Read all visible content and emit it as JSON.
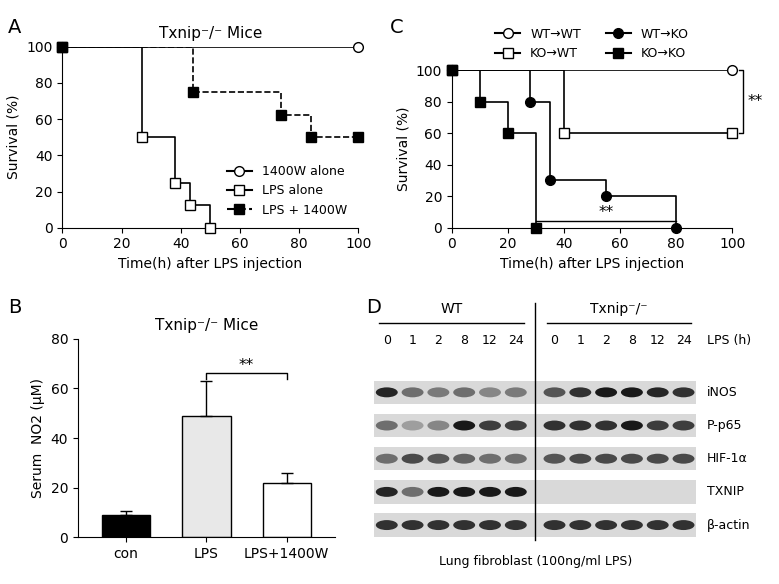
{
  "chart_data": [
    {
      "panel": "A",
      "type": "survival",
      "title": "Txnip⁻/⁻ Mice",
      "x_label": "Time(h) after LPS injection",
      "y_label": "Survival (%)",
      "xlim": [
        0,
        100
      ],
      "xticks": [
        0,
        20,
        40,
        60,
        80,
        100
      ],
      "ylim": [
        0,
        100
      ],
      "yticks": [
        0,
        20,
        40,
        60,
        80,
        100
      ],
      "legend": "lower right",
      "series": [
        {
          "name": "1400W alone",
          "color": "#000000",
          "marker": "open_circle",
          "line_style": "solid",
          "x": [
            0,
            100
          ],
          "values": [
            100,
            100
          ]
        },
        {
          "name": "LPS alone",
          "color": "#000000",
          "marker": "open_square",
          "line_style": "solid",
          "x": [
            0,
            27,
            38,
            43,
            50
          ],
          "values": [
            100,
            50,
            25,
            12.5,
            0
          ]
        },
        {
          "name": "LPS + 1400W",
          "color": "#000000",
          "marker": "filled_square",
          "line_style": "dashed",
          "x": [
            0,
            44,
            74,
            84,
            100
          ],
          "values": [
            100,
            75,
            62.5,
            50,
            50
          ]
        }
      ]
    },
    {
      "panel": "B",
      "type": "bar",
      "title": "Txnip⁻/⁻ Mice",
      "y_label": "Serum  NO2 (μM)",
      "categories": [
        "con",
        "LPS",
        "LPS+1400W"
      ],
      "values": [
        9,
        49,
        22
      ],
      "errors": [
        1.5,
        14,
        4
      ],
      "colors": [
        "#000000",
        "#e8e8e8",
        "#ffffff"
      ],
      "ylim": [
        0,
        80
      ],
      "yticks": [
        0,
        20,
        40,
        60,
        80
      ],
      "annotations": [
        {
          "text": "**",
          "between": [
            "LPS",
            "LPS+1400W"
          ]
        }
      ]
    },
    {
      "panel": "C",
      "type": "survival",
      "x_label": "Time(h) after LPS injection",
      "y_label": "Survival (%)",
      "xlim": [
        0,
        100
      ],
      "xticks": [
        0,
        20,
        40,
        60,
        80,
        100
      ],
      "ylim": [
        0,
        100
      ],
      "yticks": [
        0,
        20,
        40,
        60,
        80,
        100
      ],
      "legend": "upper center",
      "series": [
        {
          "name": "WT→WT",
          "color": "#000000",
          "marker": "open_circle",
          "line_style": "solid",
          "x": [
            0,
            100
          ],
          "values": [
            100,
            100
          ]
        },
        {
          "name": "KO→WT",
          "color": "#000000",
          "marker": "open_square",
          "line_style": "solid",
          "x": [
            0,
            40,
            100
          ],
          "values": [
            100,
            60,
            60
          ]
        },
        {
          "name": "WT→KO",
          "color": "#000000",
          "marker": "filled_circle",
          "line_style": "solid",
          "x": [
            0,
            28,
            35,
            55,
            80
          ],
          "values": [
            100,
            80,
            30,
            20,
            0
          ]
        },
        {
          "name": "KO→KO",
          "color": "#000000",
          "marker": "filled_square",
          "line_style": "solid",
          "x": [
            0,
            10,
            20,
            30
          ],
          "values": [
            100,
            80,
            60,
            0
          ]
        }
      ],
      "annotations": [
        {
          "text": "**",
          "between": [
            "WT→WT",
            "KO→WT"
          ]
        },
        {
          "text": "**",
          "between": [
            "KO→KO",
            "WT→KO"
          ]
        }
      ]
    },
    {
      "panel": "D",
      "type": "blot",
      "lane_header": "LPS (h)",
      "groups": [
        {
          "name": "WT",
          "lanes": [
            0,
            1,
            2,
            8,
            12,
            24
          ]
        },
        {
          "name": "Txnip⁻/⁻",
          "lanes": [
            0,
            1,
            2,
            8,
            12,
            24
          ]
        }
      ],
      "rows": [
        {
          "name": "iNOS",
          "intensity": [
            0.9,
            0.6,
            0.55,
            0.6,
            0.5,
            0.55,
            0.7,
            0.85,
            0.95,
            0.95,
            0.9,
            0.85
          ]
        },
        {
          "name": "P-p65",
          "intensity": [
            0.6,
            0.4,
            0.5,
            0.95,
            0.8,
            0.8,
            0.85,
            0.85,
            0.85,
            0.95,
            0.8,
            0.8
          ]
        },
        {
          "name": "HIF-1α",
          "intensity": [
            0.6,
            0.75,
            0.7,
            0.65,
            0.6,
            0.6,
            0.7,
            0.75,
            0.75,
            0.75,
            0.75,
            0.75
          ]
        },
        {
          "name": "TXNIP",
          "intensity": [
            0.9,
            0.6,
            0.95,
            0.95,
            0.95,
            0.95,
            0,
            0,
            0,
            0,
            0,
            0
          ]
        },
        {
          "name": "β-actin",
          "intensity": [
            0.85,
            0.85,
            0.85,
            0.85,
            0.85,
            0.85,
            0.85,
            0.85,
            0.85,
            0.85,
            0.85,
            0.85
          ]
        }
      ],
      "caption": "Lung fibroblast (100ng/ml LPS)"
    }
  ]
}
